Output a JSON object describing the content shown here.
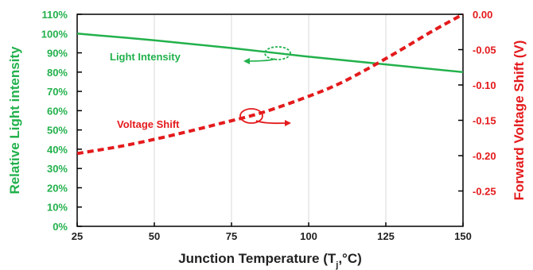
{
  "chart_data": {
    "type": "line",
    "xlabel": "Junction Temperature (T",
    "xlabel_sub": "j",
    "xlabel_suffix": ",°C)",
    "ylabel_left": "Relative Light intensity",
    "ylabel_right": "Forward Voltage Shift (V)",
    "xlim": [
      25,
      150
    ],
    "ylim_left": [
      0,
      110
    ],
    "ylim_right": [
      -0.3,
      0.0
    ],
    "x_ticks": [
      "25",
      "50",
      "75",
      "100",
      "125",
      "150"
    ],
    "y_left_ticks": [
      "0%",
      "10%",
      "20%",
      "30%",
      "40%",
      "50%",
      "60%",
      "70%",
      "80%",
      "90%",
      "100%",
      "110%"
    ],
    "y_right_ticks": [
      "0.00",
      "-0.05",
      "-0.10",
      "-0.15",
      "-0.20",
      "-0.25"
    ],
    "grid": "vertical",
    "series": [
      {
        "name": "Light Intensity",
        "axis": "left",
        "color": "#22b14c",
        "style": "solid",
        "x": [
          25,
          50,
          75,
          100,
          125,
          150
        ],
        "y": [
          100,
          96.5,
          92.5,
          88,
          84,
          80
        ]
      },
      {
        "name": "Voltage Shift",
        "axis": "right",
        "color": "#e41a1c",
        "style": "dashed",
        "x": [
          25,
          40,
          55,
          70,
          85,
          100,
          110,
          120,
          130,
          140,
          150
        ],
        "y": [
          -0.197,
          -0.186,
          -0.172,
          -0.156,
          -0.139,
          -0.116,
          -0.098,
          -0.075,
          -0.05,
          -0.024,
          0.0
        ]
      }
    ],
    "annotations": [
      {
        "text": "Light Intensity",
        "color": "#22b14c"
      },
      {
        "text": "Voltage Shift",
        "color": "#e41a1c"
      }
    ]
  }
}
